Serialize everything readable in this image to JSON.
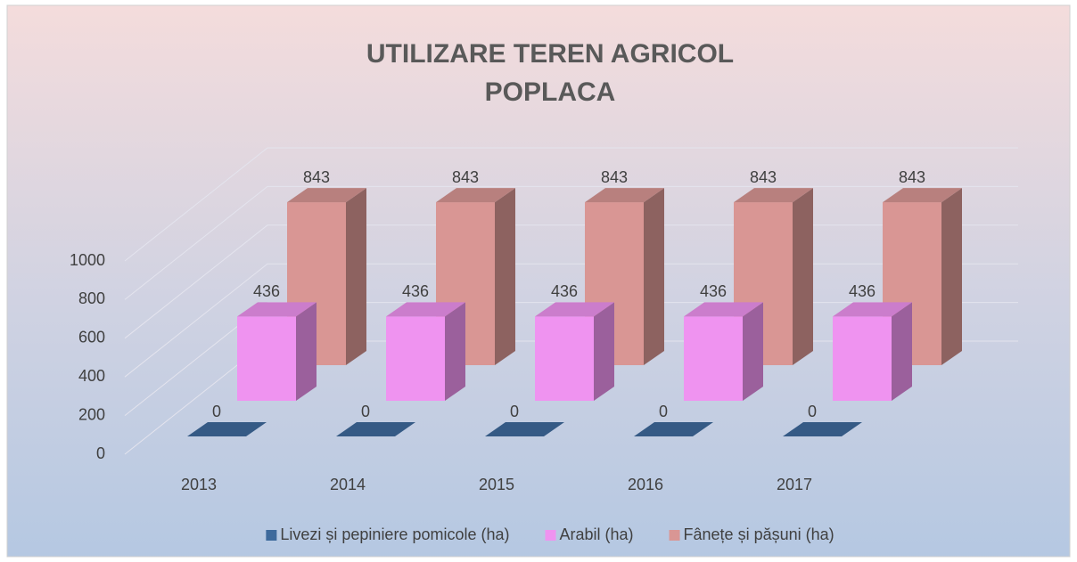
{
  "chart_data": {
    "type": "bar3d",
    "title": [
      "UTILIZARE TEREN AGRICOL",
      "POPLACA"
    ],
    "categories": [
      "2013",
      "2014",
      "2015",
      "2016",
      "2017"
    ],
    "series": [
      {
        "name": "Livezi și pepiniere pomicole (ha)",
        "color": "#3e6a9c",
        "values": [
          0,
          0,
          0,
          0,
          0
        ]
      },
      {
        "name": "Arabil (ha)",
        "color": "#ef93f0",
        "values": [
          436,
          436,
          436,
          436,
          436
        ]
      },
      {
        "name": "Fânețe și pășuni (ha)",
        "color": "#d99694",
        "values": [
          843,
          843,
          843,
          843,
          843
        ]
      }
    ],
    "ylim": [
      0,
      1000
    ],
    "yticks": [
      0,
      200,
      400,
      600,
      800,
      1000
    ],
    "grid": true,
    "legend": "bottom"
  }
}
